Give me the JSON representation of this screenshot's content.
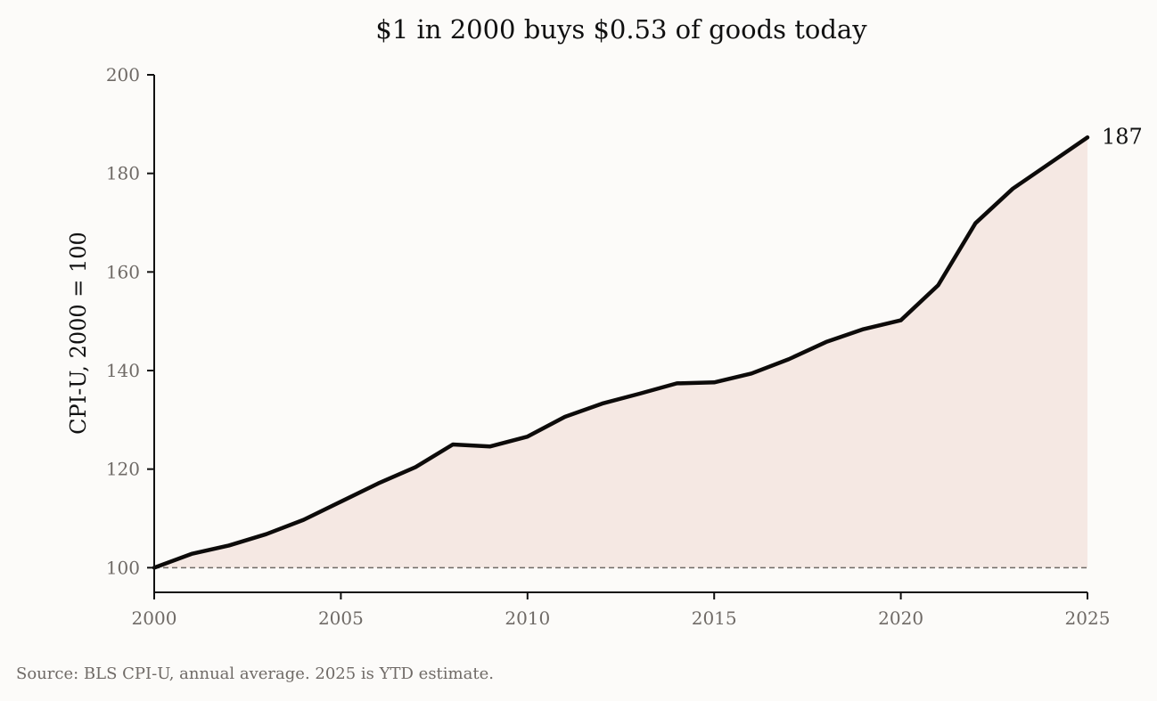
{
  "chart_data": {
    "type": "area",
    "title": "$1 in 2000 buys $0.53 of goods today",
    "xlabel": "",
    "ylabel": "CPI-U, 2000 = 100",
    "source": "Source: BLS CPI-U, annual average. 2025 is YTD estimate.",
    "x": [
      2000,
      2001,
      2002,
      2003,
      2004,
      2005,
      2006,
      2007,
      2008,
      2009,
      2010,
      2011,
      2012,
      2013,
      2014,
      2015,
      2016,
      2017,
      2018,
      2019,
      2020,
      2021,
      2022,
      2023,
      2024,
      2025
    ],
    "series": [
      {
        "values": [
          100.0,
          102.8,
          104.5,
          106.8,
          109.7,
          113.4,
          117.1,
          120.4,
          125.0,
          124.6,
          126.6,
          130.6,
          133.3,
          135.3,
          137.4,
          137.6,
          139.4,
          142.3,
          145.8,
          148.4,
          150.2,
          157.3,
          169.9,
          176.9,
          182.1,
          187.3
        ]
      }
    ],
    "end_label": "187",
    "xlim": [
      2000,
      2025
    ],
    "ylim": [
      95,
      200
    ],
    "xticks": [
      2000,
      2005,
      2010,
      2015,
      2020,
      2025
    ],
    "yticks": [
      100,
      120,
      140,
      160,
      180,
      200
    ],
    "reference_line": 100,
    "grid": false,
    "colors": {
      "line": "#0d0b0a",
      "fill": "#f5e8e3",
      "reference": "#6f6a66",
      "background": "#fcfbf9"
    }
  }
}
